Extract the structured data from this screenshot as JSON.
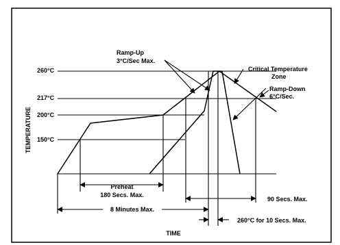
{
  "diagram": {
    "title": "",
    "x_axis_label": "TIME",
    "y_axis_label": "TEMPERATURE",
    "temperature_levels": [
      "260°C",
      "217°C",
      "200°C",
      "150°C"
    ],
    "callouts": {
      "ramp_up_line1": "Ramp-Up",
      "ramp_up_line2": "3°C/Sec Max.",
      "critical_line1": "Critical Temperature",
      "critical_line2": "Zone",
      "ramp_down_line1": "Ramp-Down",
      "ramp_down_line2": "6°C/Sec."
    },
    "dimensions": {
      "preheat_line1": "Preheat",
      "preheat_line2": "180 Secs. Max.",
      "ninety_secs": "90 Secs. Max.",
      "eight_minutes": "8 Minutes Max.",
      "peak_time": "260°C for 10 Secs. Max."
    }
  }
}
